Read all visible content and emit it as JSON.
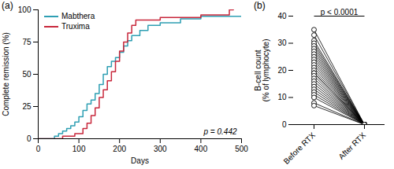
{
  "chart_data": [
    {
      "type": "line",
      "panel_label": "(a)",
      "line_style": "step",
      "xlabel": "Days",
      "ylabel": "Complete remission (%)",
      "xlim": [
        0,
        500
      ],
      "xticks": [
        0,
        100,
        200,
        300,
        400,
        500
      ],
      "ylim": [
        0,
        100
      ],
      "yticks": [
        0,
        25,
        50,
        75,
        100
      ],
      "grid": false,
      "legend": "upper left",
      "annotations": [
        "p = 0.442"
      ],
      "series": [
        {
          "name": "Mabthera",
          "color": "#2e9fb3",
          "x": [
            0,
            40,
            50,
            60,
            70,
            80,
            90,
            100,
            110,
            120,
            130,
            140,
            150,
            160,
            170,
            180,
            190,
            200,
            210,
            220,
            230,
            250,
            270,
            300,
            350,
            400,
            500
          ],
          "values": [
            0,
            2,
            4,
            6,
            8,
            10,
            13,
            17,
            22,
            27,
            30,
            35,
            42,
            50,
            56,
            60,
            63,
            67,
            72,
            76,
            80,
            84,
            88,
            90,
            93,
            95,
            95
          ]
        },
        {
          "name": "Truxima",
          "color": "#c8283c",
          "x": [
            0,
            60,
            90,
            110,
            120,
            130,
            140,
            150,
            160,
            170,
            180,
            190,
            200,
            210,
            220,
            230,
            240,
            300,
            400,
            470,
            480
          ],
          "values": [
            0,
            2,
            4,
            8,
            12,
            18,
            24,
            32,
            38,
            45,
            52,
            60,
            68,
            75,
            82,
            88,
            92,
            94,
            96,
            100,
            100
          ]
        }
      ]
    },
    {
      "type": "paired",
      "panel_label": "(b)",
      "ylabel": "B-cell count\n(% of lymphocyte)",
      "categories": [
        "Before RTX",
        "After RTX"
      ],
      "ylim": [
        0,
        40
      ],
      "yticks": [
        0,
        10,
        20,
        30,
        40
      ],
      "grid": false,
      "marker": "open circle",
      "color": "#000000",
      "annotations": [
        "p < 0.0001"
      ],
      "values": [
        [
          35,
          0
        ],
        [
          33,
          0
        ],
        [
          31,
          0
        ],
        [
          30,
          0
        ],
        [
          29,
          0
        ],
        [
          28,
          0
        ],
        [
          27,
          0
        ],
        [
          26,
          0
        ],
        [
          25,
          0
        ],
        [
          24,
          0
        ],
        [
          23,
          0
        ],
        [
          22,
          0
        ],
        [
          21,
          0
        ],
        [
          20,
          0
        ],
        [
          19,
          0
        ],
        [
          19,
          0
        ],
        [
          18,
          0
        ],
        [
          17,
          0
        ],
        [
          16,
          0
        ],
        [
          15,
          0
        ],
        [
          14,
          0
        ],
        [
          13,
          0
        ],
        [
          12,
          0
        ],
        [
          11,
          0
        ],
        [
          10,
          0
        ],
        [
          8,
          0
        ],
        [
          7,
          0
        ]
      ]
    }
  ]
}
